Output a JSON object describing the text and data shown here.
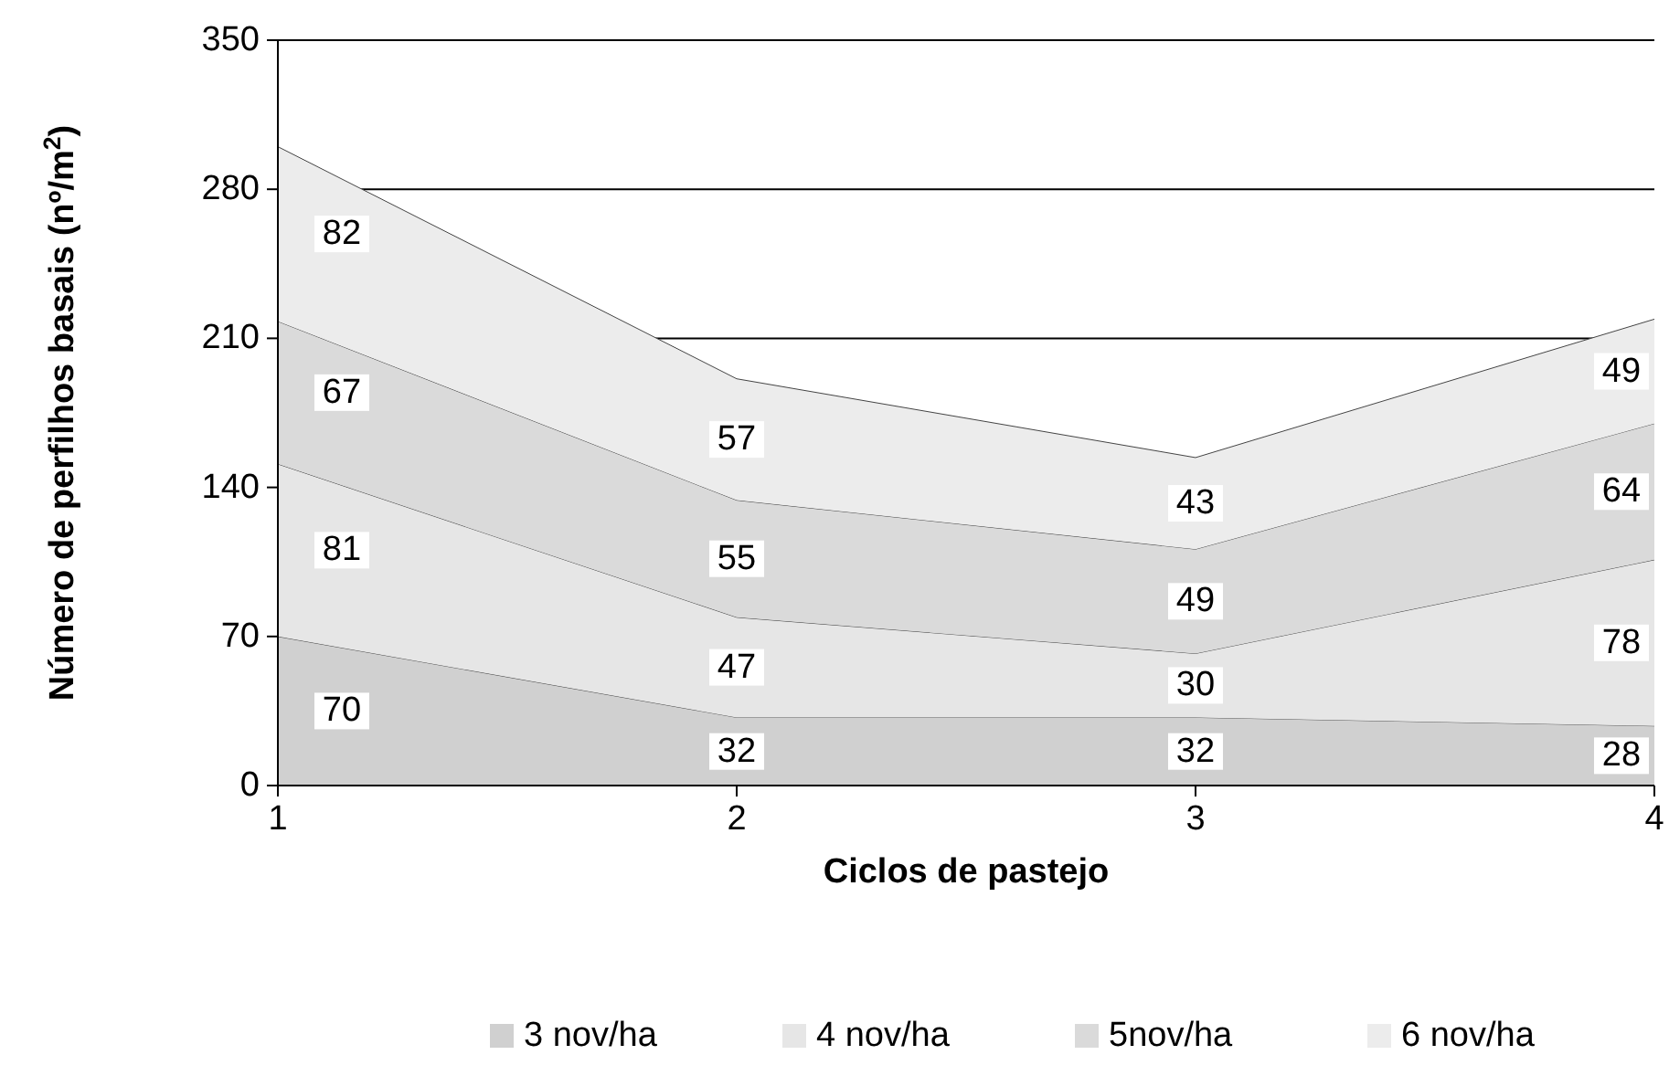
{
  "chart_data": {
    "type": "area",
    "stacked": true,
    "xlabel": "Ciclos de pastejo",
    "ylabel": "Número de perfilhos basais (nº/m$^{2}$)",
    "x": [
      1,
      2,
      3,
      4
    ],
    "xlim": [
      1,
      4
    ],
    "xticks": [
      1,
      2,
      3,
      4
    ],
    "ylim": [
      0,
      350
    ],
    "yticks": [
      0,
      70,
      140,
      210,
      280,
      350
    ],
    "grid": "y",
    "legend": "bottom",
    "data_labels": true,
    "series": [
      {
        "name": "3 nov/ha",
        "color": "#d0d0d0",
        "values": [
          70,
          32,
          32,
          28
        ]
      },
      {
        "name": "4 nov/ha",
        "color": "#e6e6e6",
        "values": [
          81,
          47,
          30,
          78
        ]
      },
      {
        "name": "5nov/ha",
        "color": "#dadada",
        "values": [
          67,
          55,
          49,
          64
        ]
      },
      {
        "name": "6 nov/ha",
        "color": "#ececec",
        "values": [
          82,
          57,
          43,
          49
        ]
      }
    ]
  }
}
